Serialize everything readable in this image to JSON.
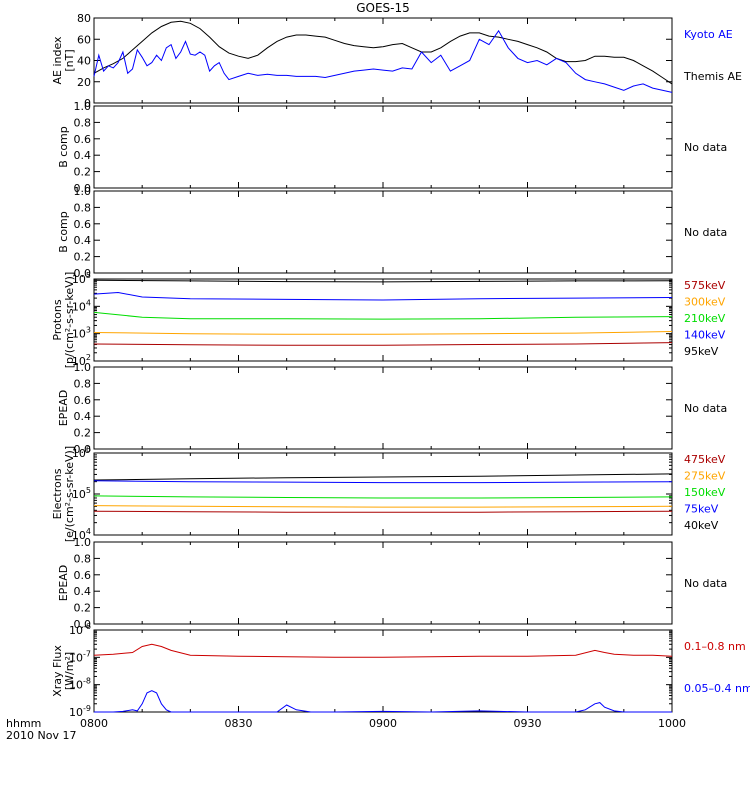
{
  "title": "GOES-15",
  "bottom_labels": {
    "line1": "hhmm",
    "line2": "2010 Nov 17"
  },
  "x_ticks": [
    "0800",
    "0830",
    "0900",
    "0930",
    "1000"
  ],
  "colors": {
    "black": "#000000",
    "blue": "#0000ff",
    "red": "#cc0000",
    "orange": "#ffa500",
    "green": "#00dd00",
    "dark_red": "#aa0000"
  },
  "chart_data": [
    {
      "type": "line",
      "ylabel": "AE index [nT]",
      "x_range_minutes": [
        0,
        120
      ],
      "ylim": [
        0,
        80
      ],
      "yticks": [
        "0",
        "20",
        "40",
        "60",
        "80"
      ],
      "legend": [
        {
          "name": "Kyoto AE",
          "color": "#0000ff"
        },
        {
          "name": "Themis AE",
          "color": "#000000"
        }
      ],
      "series": [
        {
          "name": "Themis AE",
          "color": "#000000",
          "x": [
            0,
            2,
            4,
            6,
            8,
            10,
            12,
            14,
            16,
            18,
            20,
            22,
            24,
            26,
            28,
            30,
            32,
            34,
            36,
            38,
            40,
            42,
            44,
            46,
            48,
            50,
            52,
            54,
            56,
            58,
            60,
            62,
            64,
            66,
            68,
            70,
            72,
            74,
            76,
            78,
            80,
            82,
            84,
            86,
            88,
            90,
            92,
            94,
            96,
            98,
            100,
            102,
            104,
            106,
            108,
            110,
            112,
            114,
            116,
            118,
            120
          ],
          "y": [
            28,
            33,
            37,
            42,
            50,
            58,
            66,
            72,
            76,
            77,
            75,
            70,
            62,
            53,
            47,
            44,
            42,
            45,
            52,
            58,
            62,
            64,
            64,
            63,
            62,
            59,
            56,
            54,
            53,
            52,
            53,
            55,
            56,
            52,
            48,
            48,
            52,
            58,
            63,
            66,
            66,
            63,
            62,
            60,
            58,
            55,
            52,
            48,
            42,
            39,
            39,
            40,
            44,
            44,
            43,
            43,
            40,
            35,
            30,
            24,
            18
          ]
        },
        {
          "name": "Kyoto AE",
          "color": "#0000ff",
          "x": [
            0,
            1,
            2,
            3,
            4,
            5,
            6,
            7,
            8,
            9,
            10,
            11,
            12,
            13,
            14,
            15,
            16,
            17,
            18,
            19,
            20,
            21,
            22,
            23,
            24,
            25,
            26,
            27,
            28,
            30,
            32,
            34,
            36,
            38,
            40,
            42,
            44,
            46,
            48,
            50,
            52,
            54,
            56,
            58,
            60,
            62,
            64,
            66,
            68,
            70,
            72,
            74,
            76,
            78,
            80,
            82,
            84,
            86,
            88,
            90,
            92,
            94,
            96,
            98,
            100,
            102,
            104,
            106,
            108,
            110,
            112,
            114,
            116,
            118,
            120
          ],
          "y": [
            25,
            45,
            30,
            35,
            33,
            38,
            48,
            28,
            32,
            50,
            43,
            35,
            38,
            45,
            40,
            52,
            55,
            42,
            48,
            58,
            46,
            45,
            48,
            45,
            30,
            35,
            38,
            28,
            22,
            25,
            28,
            26,
            27,
            26,
            26,
            25,
            25,
            25,
            24,
            26,
            28,
            30,
            31,
            32,
            31,
            30,
            33,
            32,
            48,
            38,
            45,
            30,
            35,
            40,
            60,
            55,
            68,
            52,
            42,
            38,
            40,
            36,
            42,
            38,
            28,
            22,
            20,
            18,
            15,
            12,
            16,
            18,
            14,
            12,
            10
          ]
        }
      ]
    },
    {
      "type": "line",
      "ylabel": "B comp",
      "ylim": [
        0,
        1
      ],
      "yticks": [
        "0.0",
        "0.2",
        "0.4",
        "0.6",
        "0.8",
        "1.0"
      ],
      "note": "No data",
      "series": []
    },
    {
      "type": "line",
      "ylabel": "B comp",
      "ylim": [
        0,
        1
      ],
      "yticks": [
        "0.0",
        "0.2",
        "0.4",
        "0.6",
        "0.8",
        "1.0"
      ],
      "note": "No data",
      "series": []
    },
    {
      "type": "line",
      "ylabel": "Protons [p/(cm²-s-sr-keV)]",
      "log": true,
      "ylim_exp": [
        2,
        5
      ],
      "yticks": [
        {
          "mant": "10",
          "exp": "2"
        },
        {
          "mant": "10",
          "exp": "3"
        },
        {
          "mant": "10",
          "exp": "4"
        },
        {
          "mant": "10",
          "exp": "5"
        }
      ],
      "legend": [
        {
          "name": "575keV",
          "color": "#aa0000"
        },
        {
          "name": "300keV",
          "color": "#ffa500"
        },
        {
          "name": "210keV",
          "color": "#00dd00"
        },
        {
          "name": "140keV",
          "color": "#0000ff"
        },
        {
          "name": "95keV",
          "color": "#000000"
        }
      ],
      "series": [
        {
          "name": "95keV",
          "color": "#000000",
          "x": [
            0,
            20,
            40,
            60,
            80,
            100,
            120
          ],
          "y": [
            90000,
            85000,
            80000,
            78000,
            82000,
            85000,
            86000
          ]
        },
        {
          "name": "140keV",
          "color": "#0000ff",
          "x": [
            0,
            5,
            10,
            20,
            40,
            60,
            80,
            100,
            120
          ],
          "y": [
            28000,
            32000,
            22000,
            19000,
            18000,
            17000,
            19000,
            20000,
            21000
          ]
        },
        {
          "name": "210keV",
          "color": "#00dd00",
          "x": [
            0,
            10,
            20,
            40,
            60,
            80,
            100,
            120
          ],
          "y": [
            6000,
            4000,
            3500,
            3500,
            3400,
            3500,
            4000,
            4200
          ]
        },
        {
          "name": "300keV",
          "color": "#ffa500",
          "x": [
            0,
            20,
            40,
            60,
            80,
            100,
            120
          ],
          "y": [
            1100,
            1000,
            950,
            950,
            1000,
            1050,
            1200
          ]
        },
        {
          "name": "575keV",
          "color": "#aa0000",
          "x": [
            0,
            20,
            40,
            60,
            80,
            100,
            120
          ],
          "y": [
            420,
            390,
            380,
            380,
            400,
            420,
            470
          ]
        }
      ]
    },
    {
      "type": "line",
      "ylabel": "EPEAD",
      "ylim": [
        0,
        1
      ],
      "yticks": [
        "0.0",
        "0.2",
        "0.4",
        "0.6",
        "0.8",
        "1.0"
      ],
      "note": "No data",
      "series": []
    },
    {
      "type": "line",
      "ylabel": "Electrons [e/(cm²-s-sr-keV)]",
      "log": true,
      "ylim_exp": [
        4,
        6
      ],
      "yticks": [
        {
          "mant": "10",
          "exp": "4"
        },
        {
          "mant": "10",
          "exp": "5"
        },
        {
          "mant": "10",
          "exp": "6"
        }
      ],
      "legend": [
        {
          "name": "475keV",
          "color": "#aa0000"
        },
        {
          "name": "275keV",
          "color": "#ffa500"
        },
        {
          "name": "150keV",
          "color": "#00dd00"
        },
        {
          "name": "75keV",
          "color": "#0000ff"
        },
        {
          "name": "40keV",
          "color": "#000000"
        }
      ],
      "series": [
        {
          "name": "40keV",
          "color": "#000000",
          "x": [
            0,
            20,
            40,
            60,
            80,
            100,
            120
          ],
          "y": [
            220000,
            235000,
            250000,
            260000,
            270000,
            290000,
            310000
          ]
        },
        {
          "name": "75keV",
          "color": "#0000ff",
          "x": [
            0,
            20,
            40,
            60,
            80,
            100,
            120
          ],
          "y": [
            210000,
            200000,
            195000,
            190000,
            190000,
            195000,
            200000
          ]
        },
        {
          "name": "150keV",
          "color": "#00dd00",
          "x": [
            0,
            20,
            40,
            60,
            80,
            100,
            120
          ],
          "y": [
            90000,
            85000,
            82000,
            80000,
            80000,
            82000,
            85000
          ]
        },
        {
          "name": "275keV",
          "color": "#ffa500",
          "x": [
            0,
            20,
            40,
            60,
            80,
            100,
            120
          ],
          "y": [
            52000,
            50000,
            49000,
            48000,
            48000,
            49000,
            50000
          ]
        },
        {
          "name": "475keV",
          "color": "#aa0000",
          "x": [
            0,
            20,
            40,
            60,
            80,
            100,
            120
          ],
          "y": [
            38000,
            37000,
            36000,
            36000,
            36000,
            37000,
            38000
          ]
        }
      ]
    },
    {
      "type": "line",
      "ylabel": "EPEAD",
      "ylim": [
        0,
        1
      ],
      "yticks": [
        "0.0",
        "0.2",
        "0.4",
        "0.6",
        "0.8",
        "1.0"
      ],
      "note": "No data",
      "series": []
    },
    {
      "type": "line",
      "ylabel": "Xray Flux [W/m²]",
      "log": true,
      "ylim_exp": [
        -9,
        -6
      ],
      "yticks": [
        {
          "mant": "10",
          "exp": "-9"
        },
        {
          "mant": "10",
          "exp": "-8"
        },
        {
          "mant": "10",
          "exp": "-7"
        },
        {
          "mant": "10",
          "exp": "-6"
        }
      ],
      "legend": [
        {
          "name": "0.1–0.8 nm",
          "color": "#cc0000"
        },
        {
          "name": "0.05–0.4 nm",
          "color": "#0000ff"
        }
      ],
      "series": [
        {
          "name": "0.1–0.8 nm",
          "color": "#cc0000",
          "x": [
            0,
            4,
            8,
            10,
            12,
            14,
            16,
            20,
            30,
            40,
            50,
            60,
            70,
            80,
            90,
            100,
            104,
            106,
            108,
            112,
            116,
            120
          ],
          "y": [
            1.2e-07,
            1.3e-07,
            1.5e-07,
            2.5e-07,
            3e-07,
            2.5e-07,
            1.8e-07,
            1.2e-07,
            1.1e-07,
            1.05e-07,
            1e-07,
            1e-07,
            1.05e-07,
            1.1e-07,
            1.1e-07,
            1.2e-07,
            1.8e-07,
            1.5e-07,
            1.3e-07,
            1.2e-07,
            1.2e-07,
            1.1e-07
          ]
        },
        {
          "name": "0.05–0.4 nm",
          "color": "#0000ff",
          "x": [
            0,
            4,
            6,
            8,
            9,
            10,
            11,
            12,
            13,
            14,
            15,
            16,
            17,
            20,
            30,
            38,
            40,
            42,
            45,
            50,
            60,
            70,
            80,
            90,
            100,
            102,
            104,
            105,
            106,
            108,
            110,
            112,
            116,
            120
          ],
          "y": [
            1e-09,
            1e-09,
            1.05e-09,
            1.2e-09,
            1.1e-09,
            2e-09,
            5e-09,
            6e-09,
            5e-09,
            2e-09,
            1.2e-09,
            1e-09,
            1e-09,
            1e-09,
            1e-09,
            1e-09,
            1.8e-09,
            1.2e-09,
            1e-09,
            1e-09,
            1.05e-09,
            1e-09,
            1.1e-09,
            1e-09,
            1e-09,
            1.2e-09,
            2e-09,
            2.2e-09,
            1.5e-09,
            1.1e-09,
            1e-09,
            1e-09,
            1e-09,
            1e-09
          ]
        }
      ]
    }
  ]
}
